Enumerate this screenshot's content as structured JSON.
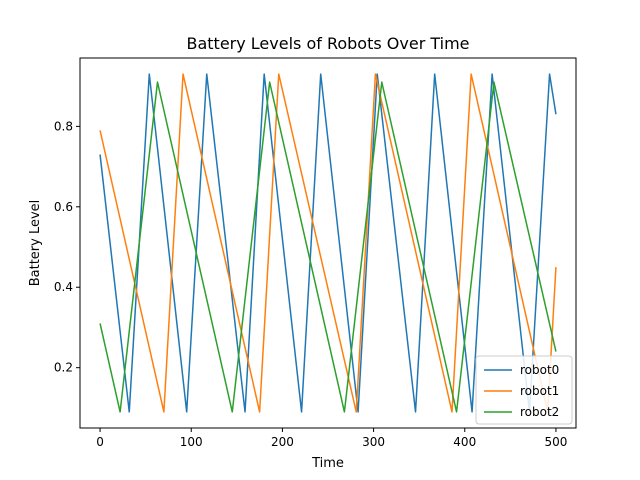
{
  "chart_data": {
    "type": "line",
    "title": "Battery Levels of Robots Over Time",
    "xlabel": "Time",
    "ylabel": "Battery Level",
    "xlim": [
      -22,
      522
    ],
    "ylim": [
      0.05,
      0.97
    ],
    "xticks": [
      0,
      100,
      200,
      300,
      400,
      500
    ],
    "yticks": [
      0.2,
      0.4,
      0.6,
      0.8
    ],
    "grid": false,
    "legend_position": "lower-right",
    "series": [
      {
        "name": "robot0",
        "color": "#1f77b4",
        "x": [
          0,
          32,
          54,
          95,
          117,
          159,
          180,
          221,
          242,
          283,
          304,
          346,
          367,
          408,
          430,
          471,
          493,
          500
        ],
        "y": [
          0.73,
          0.09,
          0.93,
          0.09,
          0.93,
          0.09,
          0.93,
          0.09,
          0.93,
          0.09,
          0.93,
          0.09,
          0.93,
          0.09,
          0.93,
          0.09,
          0.93,
          0.83
        ]
      },
      {
        "name": "robot1",
        "color": "#ff7f0e",
        "x": [
          0,
          70,
          91,
          175,
          196,
          281,
          302,
          386,
          407,
          491,
          500
        ],
        "y": [
          0.79,
          0.09,
          0.93,
          0.09,
          0.93,
          0.09,
          0.93,
          0.09,
          0.93,
          0.09,
          0.45
        ]
      },
      {
        "name": "robot2",
        "color": "#2ca02c",
        "x": [
          0,
          22,
          63,
          145,
          186,
          268,
          309,
          391,
          432,
          500
        ],
        "y": [
          0.31,
          0.09,
          0.91,
          0.09,
          0.91,
          0.09,
          0.91,
          0.09,
          0.91,
          0.24
        ]
      }
    ]
  }
}
